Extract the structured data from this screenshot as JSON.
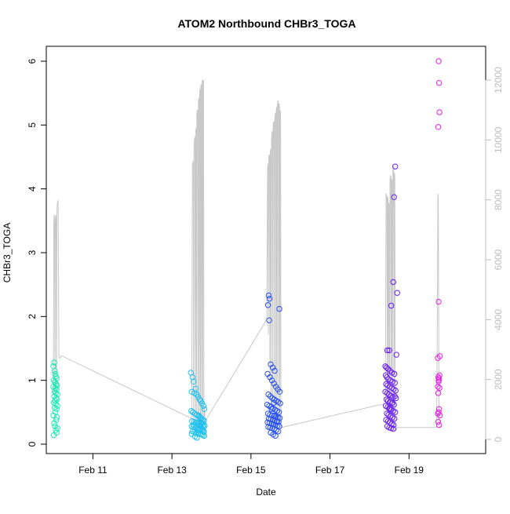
{
  "chart_data": {
    "type": "scatter",
    "title": "ATOM2 Northbound CHBr3_TOGA",
    "xlabel": "Date",
    "ylabel": "CHBr3_TOGA",
    "x_unit": "days (February)",
    "xlim": [
      9.82,
      20.94
    ],
    "ylim": [
      0,
      6.0
    ],
    "y2lim": [
      0,
      12000
    ],
    "x_ticks": [
      {
        "value": 11,
        "label": "Feb 11"
      },
      {
        "value": 13,
        "label": "Feb 13"
      },
      {
        "value": 15,
        "label": "Feb 15"
      },
      {
        "value": 17,
        "label": "Feb 17"
      },
      {
        "value": 19,
        "label": "Feb 19"
      }
    ],
    "y_ticks": [
      {
        "value": 0,
        "label": "0"
      },
      {
        "value": 1,
        "label": "1"
      },
      {
        "value": 2,
        "label": "2"
      },
      {
        "value": 3,
        "label": "3"
      },
      {
        "value": 4,
        "label": "4"
      },
      {
        "value": 5,
        "label": "5"
      },
      {
        "value": 6,
        "label": "6"
      }
    ],
    "y2_ticks": [
      {
        "value": 0,
        "label": "0"
      },
      {
        "value": 2000,
        "label": "2000"
      },
      {
        "value": 4000,
        "label": "4000"
      },
      {
        "value": 6000,
        "label": "6000"
      },
      {
        "value": 8000,
        "label": "8000"
      },
      {
        "value": 10000,
        "label": "10000"
      },
      {
        "value": 12000,
        "label": "12000"
      }
    ],
    "grid": false,
    "legend": "none",
    "line_color": "#c8c8c8",
    "series": [
      {
        "color": "#1ee8b4",
        "x": [
          10.02,
          10.0,
          10.03,
          10.06,
          10.08,
          10.01,
          10.04,
          10.07,
          10.09,
          10.0,
          10.05,
          10.08,
          10.03,
          10.06,
          10.1,
          10.02,
          10.07,
          10.09,
          10.04,
          10.01,
          10.06,
          10.1,
          10.03,
          10.08,
          10.05,
          10.0,
          10.09,
          10.07,
          10.02,
          10.04,
          10.1,
          10.06,
          10.08,
          10.01,
          10.05
        ],
        "y": [
          1.28,
          1.22,
          1.15,
          1.06,
          1.03,
          1.0,
          0.97,
          0.94,
          0.92,
          0.9,
          0.88,
          0.86,
          0.83,
          0.8,
          0.78,
          0.75,
          0.72,
          0.7,
          0.68,
          0.65,
          0.63,
          0.6,
          0.57,
          0.55,
          0.5,
          0.45,
          0.42,
          0.38,
          0.33,
          0.28,
          0.25,
          0.22,
          0.18,
          0.14,
          1.1
        ]
      },
      {
        "color": "#1ec0f0",
        "x": [
          13.48,
          13.52,
          13.55,
          13.6,
          13.5,
          13.57,
          13.63,
          13.66,
          13.7,
          13.73,
          13.76,
          13.8,
          13.82,
          13.49,
          13.53,
          13.58,
          13.62,
          13.67,
          13.71,
          13.75,
          13.78,
          13.81,
          13.51,
          13.56,
          13.61,
          13.65,
          13.69,
          13.74,
          13.79,
          13.83,
          13.5,
          13.54,
          13.59,
          13.64,
          13.68,
          13.72,
          13.77,
          13.8,
          13.52,
          13.57,
          13.62,
          13.66,
          13.7,
          13.75,
          13.78,
          13.82,
          13.55,
          13.6,
          13.65,
          13.69,
          13.73,
          13.77,
          13.81,
          13.5,
          13.58,
          13.63,
          13.68,
          13.72,
          13.76,
          13.8
        ],
        "y": [
          1.12,
          1.05,
          0.98,
          0.87,
          0.82,
          0.8,
          0.78,
          0.74,
          0.7,
          0.68,
          0.64,
          0.6,
          0.55,
          0.52,
          0.5,
          0.48,
          0.46,
          0.44,
          0.42,
          0.4,
          0.38,
          0.37,
          0.36,
          0.35,
          0.34,
          0.33,
          0.32,
          0.31,
          0.3,
          0.29,
          0.28,
          0.27,
          0.26,
          0.25,
          0.24,
          0.23,
          0.22,
          0.21,
          0.2,
          0.19,
          0.18,
          0.17,
          0.16,
          0.15,
          0.14,
          0.13,
          0.3,
          0.26,
          0.22,
          0.35,
          0.28,
          0.24,
          0.19,
          0.16,
          0.12,
          0.1,
          0.45,
          0.41,
          0.33,
          0.27
        ]
      },
      {
        "color": "#2850f0",
        "x": [
          15.45,
          15.47,
          15.43,
          15.72,
          15.46,
          15.5,
          15.55,
          15.6,
          15.42,
          15.48,
          15.53,
          15.58,
          15.63,
          15.68,
          15.73,
          15.44,
          15.49,
          15.54,
          15.59,
          15.64,
          15.69,
          15.74,
          15.41,
          15.46,
          15.51,
          15.56,
          15.61,
          15.66,
          15.71,
          15.43,
          15.48,
          15.53,
          15.58,
          15.63,
          15.68,
          15.73,
          15.45,
          15.5,
          15.55,
          15.6,
          15.65,
          15.7,
          15.42,
          15.47,
          15.52,
          15.57,
          15.62,
          15.67,
          15.72,
          15.44,
          15.49,
          15.54,
          15.59,
          15.64,
          15.69,
          15.5,
          15.56,
          15.62,
          15.66,
          15.6,
          15.52,
          15.58
        ],
        "y": [
          2.33,
          2.28,
          2.18,
          2.12,
          1.94,
          1.25,
          1.2,
          1.15,
          1.1,
          1.05,
          1.0,
          0.95,
          0.9,
          0.86,
          0.82,
          0.78,
          0.75,
          0.72,
          0.7,
          0.68,
          0.66,
          0.64,
          0.62,
          0.6,
          0.58,
          0.56,
          0.54,
          0.52,
          0.5,
          0.48,
          0.46,
          0.45,
          0.44,
          0.43,
          0.42,
          0.41,
          0.4,
          0.39,
          0.38,
          0.37,
          0.36,
          0.35,
          0.34,
          0.33,
          0.32,
          0.31,
          0.3,
          0.29,
          0.28,
          0.27,
          0.26,
          0.25,
          0.24,
          0.22,
          0.2,
          0.18,
          0.15,
          0.13,
          0.35,
          0.45,
          0.55,
          0.65
        ]
      },
      {
        "color": "#6a1ef0",
        "x": [
          18.65,
          18.62,
          18.6,
          18.7,
          18.55,
          18.45,
          18.5,
          18.68,
          18.4,
          18.43,
          18.47,
          18.52,
          18.57,
          18.63,
          18.41,
          18.44,
          18.48,
          18.53,
          18.58,
          18.64,
          18.42,
          18.46,
          18.51,
          18.56,
          18.61,
          18.66,
          18.4,
          18.45,
          18.49,
          18.54,
          18.59,
          18.67,
          18.43,
          18.47,
          18.52,
          18.57,
          18.62,
          18.41,
          18.46,
          18.5,
          18.55,
          18.6,
          18.65,
          18.44,
          18.48,
          18.53,
          18.58,
          18.63,
          18.42,
          18.47,
          18.51,
          18.56,
          18.61,
          18.45,
          18.5,
          18.55,
          18.6,
          18.52,
          18.58,
          18.64
        ],
        "y": [
          4.35,
          3.87,
          2.54,
          2.37,
          2.17,
          1.47,
          1.47,
          1.4,
          1.22,
          1.2,
          1.18,
          1.15,
          1.12,
          1.1,
          1.08,
          1.05,
          1.02,
          1.0,
          0.98,
          0.96,
          0.94,
          0.92,
          0.9,
          0.88,
          0.86,
          0.84,
          0.82,
          0.8,
          0.78,
          0.76,
          0.74,
          0.72,
          0.7,
          0.68,
          0.66,
          0.64,
          0.62,
          0.6,
          0.58,
          0.56,
          0.54,
          0.52,
          0.5,
          0.48,
          0.46,
          0.44,
          0.42,
          0.4,
          0.38,
          0.36,
          0.34,
          0.32,
          0.3,
          0.28,
          0.26,
          0.25,
          0.24,
          0.55,
          0.65,
          0.75
        ]
      },
      {
        "color": "#e61ee6",
        "x": [
          19.75,
          19.76,
          19.77,
          19.74,
          19.75,
          19.73,
          19.78,
          19.77,
          19.74,
          19.76,
          19.75,
          19.73,
          19.77,
          19.74,
          19.76,
          19.75,
          19.73,
          19.78,
          19.74,
          19.76,
          19.75
        ],
        "y": [
          6.0,
          5.66,
          5.2,
          4.97,
          2.23,
          1.35,
          1.38,
          1.08,
          1.05,
          1.03,
          1.0,
          0.9,
          0.88,
          0.8,
          0.55,
          0.5,
          0.48,
          0.45,
          0.35,
          0.3,
          0.98
        ]
      }
    ],
    "secondary_line": {
      "axis": "right",
      "x": [
        10.0,
        10.01,
        10.02,
        10.03,
        10.04,
        10.05,
        10.06,
        10.07,
        10.08,
        10.09,
        10.1,
        10.12,
        10.14,
        10.16,
        10.18,
        10.2,
        13.5,
        13.52,
        13.54,
        13.55,
        13.56,
        13.57,
        13.58,
        13.59,
        13.6,
        13.61,
        13.62,
        13.63,
        13.64,
        13.65,
        13.66,
        13.67,
        13.68,
        13.69,
        13.7,
        13.71,
        13.72,
        13.73,
        13.74,
        13.75,
        13.76,
        13.77,
        13.78,
        13.79,
        13.8,
        13.81,
        13.82,
        13.83,
        13.84,
        13.86,
        13.88,
        15.4,
        15.42,
        15.43,
        15.44,
        15.45,
        15.46,
        15.47,
        15.48,
        15.49,
        15.5,
        15.51,
        15.52,
        15.53,
        15.54,
        15.55,
        15.56,
        15.57,
        15.58,
        15.59,
        15.6,
        15.61,
        15.62,
        15.63,
        15.64,
        15.65,
        15.66,
        15.67,
        15.68,
        15.69,
        15.7,
        15.71,
        15.72,
        15.73,
        15.74,
        15.75,
        15.76,
        15.77,
        18.4,
        18.42,
        18.43,
        18.44,
        18.45,
        18.46,
        18.47,
        18.48,
        18.49,
        18.5,
        18.51,
        18.52,
        18.53,
        18.54,
        18.55,
        18.56,
        18.57,
        18.58,
        18.59,
        18.6,
        18.61,
        18.62,
        18.63,
        18.64,
        18.65,
        18.66,
        18.67,
        18.68,
        18.69,
        18.7,
        19.7,
        19.72,
        19.73,
        19.74,
        19.76,
        19.78
      ],
      "y": [
        1500,
        7300,
        7500,
        7200,
        1500,
        7400,
        7500,
        7300,
        1500,
        7600,
        7900,
        8000,
        2800,
        2700,
        2750,
        2800,
        700,
        9200,
        9300,
        500,
        9800,
        10000,
        10100,
        400,
        10300,
        10400,
        300,
        10900,
        11000,
        11000,
        200,
        11300,
        11400,
        300,
        11600,
        11700,
        300,
        11800,
        11850,
        400,
        11900,
        12000,
        500,
        11950,
        12000,
        600,
        900,
        1100,
        600,
        500,
        700,
        4000,
        9000,
        9200,
        3500,
        9400,
        9500,
        9500,
        2000,
        9600,
        9700,
        1500,
        10000,
        10200,
        10300,
        1200,
        10500,
        10600,
        10600,
        1000,
        10700,
        10800,
        10900,
        800,
        11000,
        11100,
        700,
        11200,
        11300,
        11300,
        600,
        11200,
        11200,
        500,
        11000,
        10900,
        400,
        400,
        1200,
        8200,
        8200,
        8100,
        900,
        8100,
        8000,
        800,
        7900,
        7800,
        700,
        8700,
        8800,
        8800,
        600,
        8700,
        8600,
        500,
        9000,
        9100,
        9100,
        400,
        8900,
        8800,
        300,
        300,
        300,
        300,
        400,
        400,
        400,
        5000,
        8200,
        8000,
        500,
        400
      ]
    }
  }
}
